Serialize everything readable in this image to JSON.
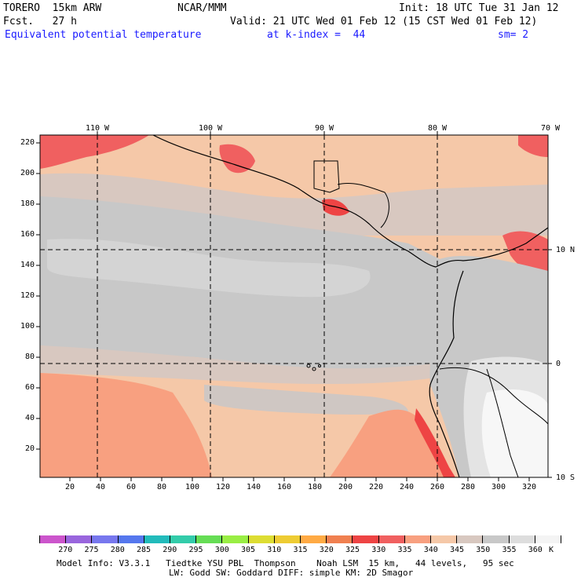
{
  "header": {
    "model": "TORERO  15km ARW",
    "org": "NCAR/MMM",
    "init": "Init: 18 UTC Tue 31 Jan 12",
    "fcst": "Fcst.   27 h",
    "valid": "Valid: 21 UTC Wed 01 Feb 12 (15 CST Wed 01 Feb 12)",
    "field": "Equivalent potential temperature",
    "level": "at k-index =  44",
    "smooth": "sm= 2"
  },
  "map": {
    "lon_labels": [
      "110 W",
      "100 W",
      "90 W",
      "80 W",
      "70 W"
    ],
    "lat_labels": [
      "10 N",
      "0",
      "10 S"
    ],
    "y_ticks": [
      "220",
      "200",
      "180",
      "160",
      "140",
      "120",
      "100",
      "80",
      "60",
      "40",
      "20"
    ],
    "x_ticks": [
      "20",
      "40",
      "60",
      "80",
      "100",
      "120",
      "140",
      "160",
      "180",
      "200",
      "220",
      "240",
      "260",
      "280",
      "300",
      "320"
    ]
  },
  "legend": {
    "values": [
      "270",
      "275",
      "280",
      "285",
      "290",
      "295",
      "300",
      "305",
      "310",
      "315",
      "320",
      "325",
      "330",
      "335",
      "340",
      "345",
      "350",
      "355",
      "360"
    ],
    "unit": "K",
    "colors": [
      "#cc55cc",
      "#9966dd",
      "#7777ee",
      "#5577ee",
      "#22bbbb",
      "#33ccaa",
      "#66dd55",
      "#99ee44",
      "#dddd33",
      "#eecc33",
      "#ffaa44",
      "#f08050",
      "#ee4444",
      "#f06060",
      "#f8a080",
      "#f5c8a8",
      "#d8c8c0",
      "#c8c8c8",
      "#dddddd",
      "#f4f4f4"
    ]
  },
  "footer": {
    "line1": "Model Info: V3.3.1   Tiedtke YSU PBL  Thompson    Noah LSM  15 km,   44 levels,   95 sec",
    "line2": "LW: Godd SW: Goddard DIFF: simple KM: 2D Smagor"
  }
}
